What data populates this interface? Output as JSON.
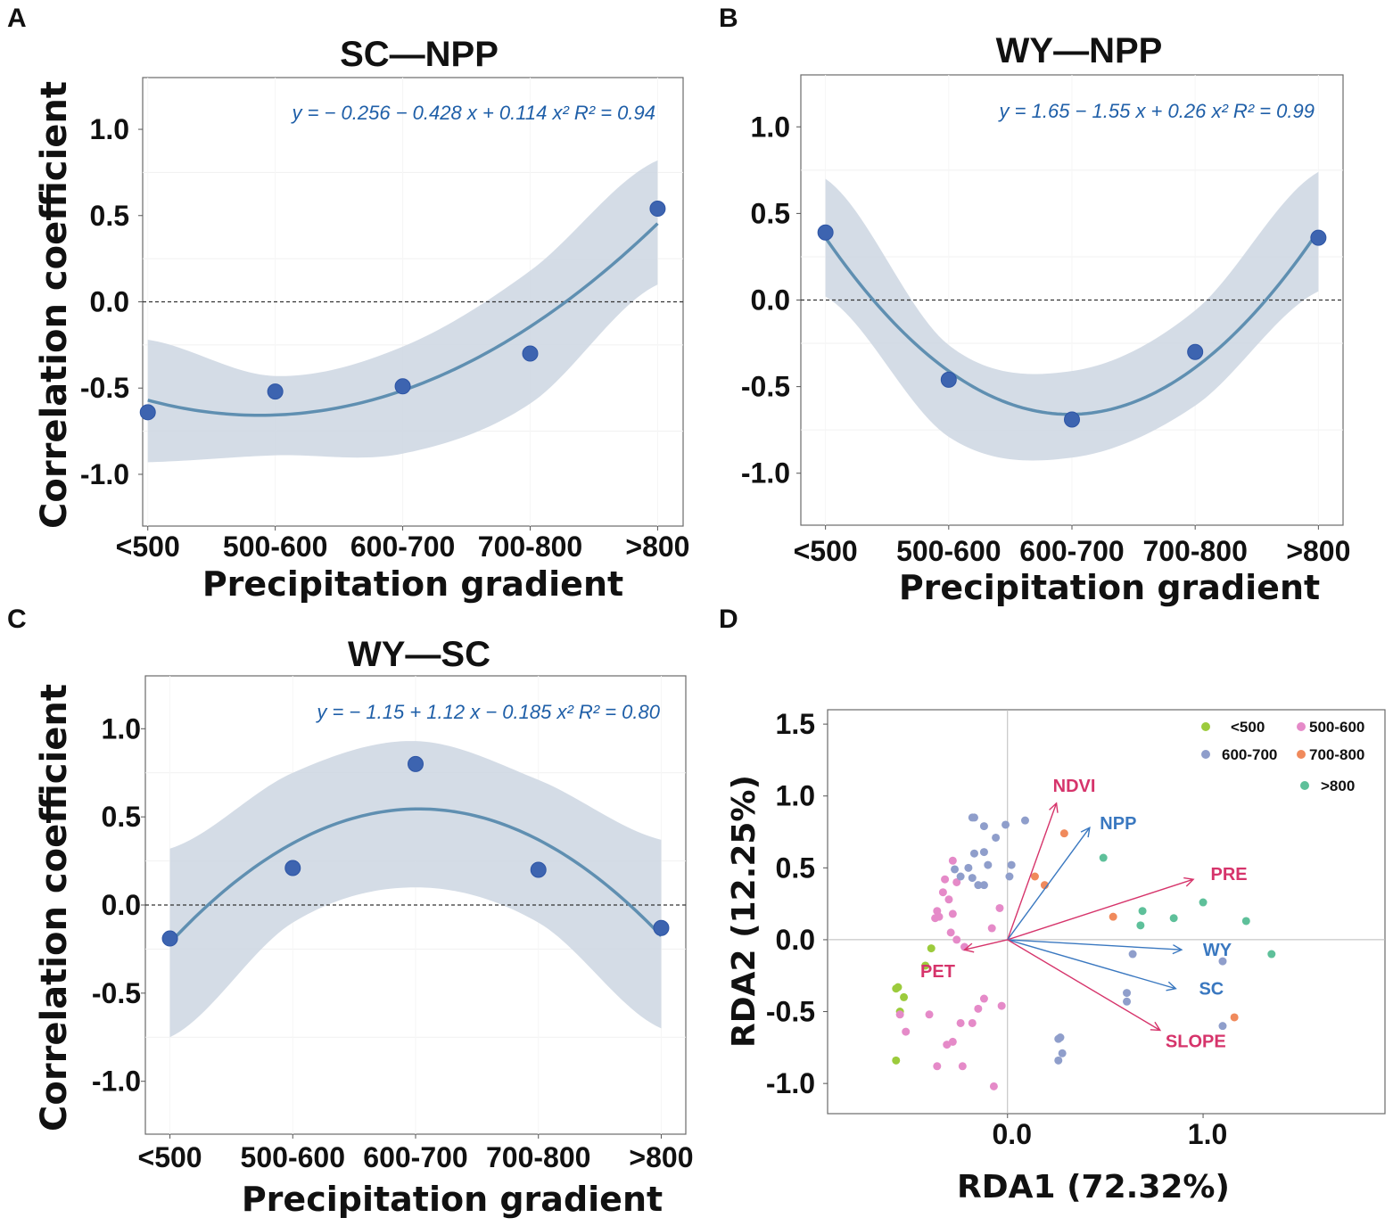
{
  "panels": [
    {
      "label": "A",
      "title": "SC—NPP",
      "equation": "y = − 0.256 − 0.428 x + 0.114 x²   R² = 0.94",
      "xlabel": "Precipitation gradient",
      "ylabel": "Correlation coefficient"
    },
    {
      "label": "B",
      "title": "WY—NPP",
      "equation": "y = 1.65 − 1.55 x + 0.26 x²   R² = 0.99",
      "xlabel": "Precipitation gradient",
      "ylabel": ""
    },
    {
      "label": "C",
      "title": "WY—SC",
      "equation": "y = − 1.15 + 1.12 x − 0.185 x²   R² = 0.80",
      "xlabel": "Precipitation gradient",
      "ylabel": "Correlation coefficient"
    },
    {
      "label": "D",
      "xlabel": "RDA1 (72.32%)",
      "ylabel": "RDA2 (12.25%)"
    }
  ],
  "chart_data": [
    {
      "type": "scatter",
      "panel": "A",
      "title": "SC—NPP",
      "categories": [
        "<500",
        "500-600",
        "600-700",
        "700-800",
        ">800"
      ],
      "x": [
        1,
        2,
        3,
        4,
        5
      ],
      "values": [
        -0.64,
        -0.52,
        -0.49,
        -0.3,
        0.54
      ],
      "fit": {
        "a": -0.256,
        "b": -0.428,
        "c": 0.114,
        "ci_lower": [
          -0.93,
          -0.89,
          -0.88,
          -0.59,
          0.1
        ],
        "ci_upper": [
          -0.22,
          -0.43,
          -0.26,
          0.18,
          0.82
        ]
      },
      "xlabel": "Precipitation gradient",
      "ylabel": "Correlation coefficient",
      "yticks": [
        1.0,
        0.5,
        0.0,
        -0.5,
        -1.0
      ],
      "ytick_labels": [
        "1.0",
        "0.5",
        "0.0",
        "-0.5",
        "-1.0"
      ],
      "ylim": [
        -1.3,
        1.3
      ],
      "xlim": [
        0.96,
        5.2
      ],
      "grid": false
    },
    {
      "type": "scatter",
      "panel": "B",
      "title": "WY—NPP",
      "categories": [
        "<500",
        "500-600",
        "600-700",
        "700-800",
        ">800"
      ],
      "x": [
        1,
        2,
        3,
        4,
        5
      ],
      "values": [
        0.39,
        -0.46,
        -0.69,
        -0.3,
        0.36
      ],
      "fit": {
        "a": 1.65,
        "b": -1.55,
        "c": 0.26,
        "ci_lower": [
          0.02,
          -0.79,
          -0.91,
          -0.61,
          0.05
        ],
        "ci_upper": [
          0.7,
          -0.26,
          -0.41,
          -0.06,
          0.74
        ]
      },
      "xlabel": "Precipitation gradient",
      "ylabel": "",
      "yticks": [
        1.0,
        0.5,
        0.0,
        -0.5,
        -1.0
      ],
      "ytick_labels": [
        "1.0",
        "0.5",
        "0.0",
        "-0.5",
        "-1.0"
      ],
      "ylim": [
        -1.3,
        1.3
      ],
      "xlim": [
        0.8,
        5.2
      ],
      "grid": false
    },
    {
      "type": "scatter",
      "panel": "C",
      "title": "WY—SC",
      "categories": [
        "<500",
        "500-600",
        "600-700",
        "700-800",
        ">800"
      ],
      "x": [
        1,
        2,
        3,
        4,
        5
      ],
      "values": [
        -0.19,
        0.21,
        0.8,
        0.2,
        -0.13
      ],
      "fit": {
        "a": -1.15,
        "b": 1.12,
        "c": -0.185,
        "ci_lower": [
          -0.75,
          -0.1,
          0.1,
          -0.1,
          -0.7
        ],
        "ci_upper": [
          0.32,
          0.75,
          0.93,
          0.71,
          0.37
        ]
      },
      "xlabel": "Precipitation gradient",
      "ylabel": "Correlation coefficient",
      "yticks": [
        1.0,
        0.5,
        0.0,
        -0.5,
        -1.0
      ],
      "ytick_labels": [
        "1.0",
        "0.5",
        "0.0",
        "-0.5",
        "-1.0"
      ],
      "ylim": [
        -1.3,
        1.3
      ],
      "xlim": [
        0.8,
        5.2
      ],
      "grid": false
    },
    {
      "type": "scatter",
      "panel": "D",
      "subtype": "rda-biplot",
      "xlabel": "RDA1 (72.32%)",
      "ylabel": "RDA2 (12.25%)",
      "xticks": [
        0.0,
        1.0
      ],
      "xtick_labels": [
        "0.0",
        "1.0"
      ],
      "yticks": [
        1.5,
        1.0,
        0.5,
        0.0,
        -0.5,
        -1.0
      ],
      "ytick_labels": [
        "1.5",
        "1.0",
        "0.5",
        "0.0",
        "-0.5",
        "-1.0"
      ],
      "xlim": [
        -0.92,
        1.93
      ],
      "ylim": [
        -1.21,
        1.6
      ],
      "legend_position": "top-right",
      "legend": [
        {
          "name": "<500",
          "color": "#9ccb3c"
        },
        {
          "name": "500-600",
          "color": "#e58ac8"
        },
        {
          "name": "600-700",
          "color": "#8f9ecb"
        },
        {
          "name": "700-800",
          "color": "#f08a5c"
        },
        {
          "name": ">800",
          "color": "#5ec09a"
        }
      ],
      "vectors": [
        {
          "name": "NDVI",
          "x": 0.25,
          "y": 0.95,
          "color": "#d6346b"
        },
        {
          "name": "NPP",
          "x": 0.42,
          "y": 0.78,
          "color": "#3a78c0"
        },
        {
          "name": "PRE",
          "x": 0.95,
          "y": 0.42,
          "color": "#d6346b"
        },
        {
          "name": "WY",
          "x": 0.89,
          "y": -0.07,
          "color": "#3a78c0"
        },
        {
          "name": "SC",
          "x": 0.86,
          "y": -0.34,
          "color": "#3a78c0"
        },
        {
          "name": "SLOPE",
          "x": 0.78,
          "y": -0.63,
          "color": "#d6346b"
        },
        {
          "name": "PET",
          "x": -0.22,
          "y": -0.07,
          "color": "#d6346b"
        }
      ],
      "series": [
        {
          "name": "<500",
          "points": [
            [
              -0.57,
              -0.34
            ],
            [
              -0.56,
              -0.33
            ],
            [
              -0.53,
              -0.4
            ],
            [
              -0.55,
              -0.5
            ],
            [
              -0.42,
              -0.18
            ],
            [
              -0.39,
              -0.06
            ],
            [
              -0.57,
              -0.84
            ]
          ]
        },
        {
          "name": "500-600",
          "points": [
            [
              -0.33,
              0.33
            ],
            [
              -0.32,
              0.42
            ],
            [
              -0.28,
              0.55
            ],
            [
              -0.26,
              0.4
            ],
            [
              -0.36,
              0.2
            ],
            [
              -0.37,
              0.15
            ],
            [
              -0.35,
              0.16
            ],
            [
              -0.3,
              0.28
            ],
            [
              -0.28,
              0.18
            ],
            [
              -0.29,
              0.05
            ],
            [
              -0.26,
              0.0
            ],
            [
              -0.22,
              -0.05
            ],
            [
              -0.08,
              0.08
            ],
            [
              -0.04,
              0.22
            ],
            [
              -0.4,
              -0.52
            ],
            [
              -0.55,
              -0.52
            ],
            [
              -0.52,
              -0.64
            ],
            [
              -0.36,
              -0.88
            ],
            [
              -0.31,
              -0.73
            ],
            [
              -0.24,
              -0.58
            ],
            [
              -0.28,
              -0.71
            ],
            [
              -0.18,
              -0.58
            ],
            [
              -0.15,
              -0.48
            ],
            [
              -0.12,
              -0.41
            ],
            [
              -0.03,
              -0.46
            ],
            [
              -0.23,
              -0.88
            ],
            [
              -0.07,
              -1.02
            ]
          ]
        },
        {
          "name": "600-700",
          "points": [
            [
              -0.18,
              0.85
            ],
            [
              -0.17,
              0.85
            ],
            [
              -0.12,
              0.79
            ],
            [
              -0.01,
              0.8
            ],
            [
              0.09,
              0.83
            ],
            [
              -0.06,
              0.71
            ],
            [
              -0.12,
              0.61
            ],
            [
              -0.1,
              0.52
            ],
            [
              -0.17,
              0.6
            ],
            [
              -0.2,
              0.5
            ],
            [
              -0.27,
              0.49
            ],
            [
              -0.24,
              0.44
            ],
            [
              -0.18,
              0.43
            ],
            [
              -0.15,
              0.38
            ],
            [
              -0.12,
              0.38
            ],
            [
              0.02,
              0.52
            ],
            [
              0.01,
              0.44
            ],
            [
              0.64,
              -0.1
            ],
            [
              1.1,
              -0.15
            ],
            [
              0.61,
              -0.37
            ],
            [
              0.61,
              -0.43
            ],
            [
              0.26,
              -0.69
            ],
            [
              0.27,
              -0.68
            ],
            [
              0.28,
              -0.79
            ],
            [
              0.26,
              -0.84
            ],
            [
              1.1,
              -0.6
            ]
          ]
        },
        {
          "name": "700-800",
          "points": [
            [
              0.29,
              0.74
            ],
            [
              0.14,
              0.44
            ],
            [
              0.19,
              0.38
            ],
            [
              0.54,
              0.16
            ],
            [
              1.16,
              -0.54
            ]
          ]
        },
        {
          "name": ">800",
          "points": [
            [
              0.49,
              0.57
            ],
            [
              0.69,
              0.2
            ],
            [
              0.68,
              0.1
            ],
            [
              0.85,
              0.15
            ],
            [
              1.0,
              0.26
            ],
            [
              1.22,
              0.13
            ],
            [
              1.35,
              -0.1
            ]
          ]
        }
      ]
    }
  ]
}
